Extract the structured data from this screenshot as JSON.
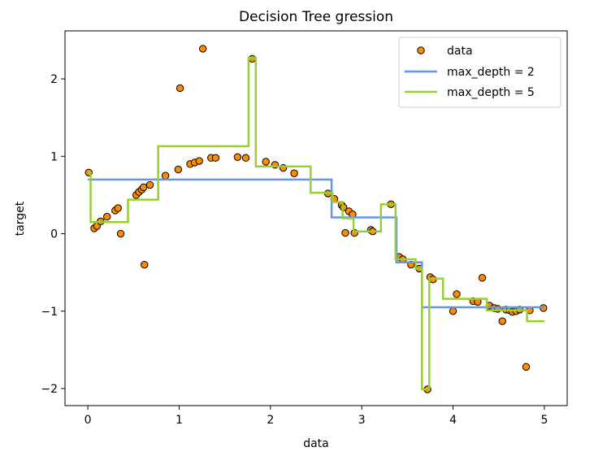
{
  "chart_data": {
    "type": "scatter+step",
    "title": "Decision Tree gression",
    "xlabel": "data",
    "ylabel": "target",
    "xlim": [
      -0.25,
      5.25
    ],
    "ylim": [
      -2.22,
      2.62
    ],
    "x_ticks": [
      0,
      1,
      2,
      3,
      4,
      5
    ],
    "x_tick_labels": [
      "0",
      "1",
      "2",
      "3",
      "4",
      "5"
    ],
    "y_ticks": [
      2,
      1,
      0,
      -1,
      -2
    ],
    "y_tick_labels": [
      "2",
      "1",
      "0",
      "−1",
      "−2"
    ],
    "legend": [
      {
        "label": "data",
        "kind": "marker",
        "color": "#ff8c00"
      },
      {
        "label": "max_depth = 2",
        "kind": "line",
        "color": "#6495ed"
      },
      {
        "label": "max_depth = 5",
        "kind": "line",
        "color": "#9acd32"
      }
    ],
    "legend_position": "top-right",
    "scatter": {
      "name": "data",
      "color": "#ff8c00",
      "edgecolor": "#000000",
      "points": [
        [
          0.01,
          0.79
        ],
        [
          0.07,
          0.07
        ],
        [
          0.1,
          0.1
        ],
        [
          0.14,
          0.16
        ],
        [
          0.21,
          0.22
        ],
        [
          0.3,
          0.3
        ],
        [
          0.33,
          0.33
        ],
        [
          0.36,
          0.0
        ],
        [
          0.53,
          0.5
        ],
        [
          0.56,
          0.54
        ],
        [
          0.59,
          0.57
        ],
        [
          0.61,
          0.6
        ],
        [
          0.62,
          -0.4
        ],
        [
          0.68,
          0.63
        ],
        [
          0.85,
          0.75
        ],
        [
          0.99,
          0.83
        ],
        [
          1.01,
          1.88
        ],
        [
          1.12,
          0.9
        ],
        [
          1.17,
          0.92
        ],
        [
          1.22,
          0.94
        ],
        [
          1.26,
          2.39
        ],
        [
          1.35,
          0.98
        ],
        [
          1.4,
          0.98
        ],
        [
          1.64,
          0.99
        ],
        [
          1.73,
          0.98
        ],
        [
          1.8,
          2.26
        ],
        [
          1.95,
          0.93
        ],
        [
          2.05,
          0.89
        ],
        [
          2.14,
          0.85
        ],
        [
          2.26,
          0.78
        ],
        [
          2.63,
          0.52
        ],
        [
          2.7,
          0.45
        ],
        [
          2.78,
          0.37
        ],
        [
          2.8,
          0.34
        ],
        [
          2.82,
          0.01
        ],
        [
          2.86,
          0.29
        ],
        [
          2.9,
          0.25
        ],
        [
          2.92,
          0.01
        ],
        [
          3.1,
          0.05
        ],
        [
          3.12,
          0.03
        ],
        [
          3.32,
          0.38
        ],
        [
          3.41,
          -0.3
        ],
        [
          3.45,
          -0.33
        ],
        [
          3.54,
          -0.4
        ],
        [
          3.63,
          -0.45
        ],
        [
          3.72,
          -2.01
        ],
        [
          3.75,
          -0.56
        ],
        [
          3.78,
          -0.59
        ],
        [
          4.0,
          -1.0
        ],
        [
          4.04,
          -0.78
        ],
        [
          4.22,
          -0.87
        ],
        [
          4.27,
          -0.88
        ],
        [
          4.32,
          -0.57
        ],
        [
          4.4,
          -0.93
        ],
        [
          4.45,
          -0.96
        ],
        [
          4.49,
          -0.97
        ],
        [
          4.54,
          -1.13
        ],
        [
          4.58,
          -0.98
        ],
        [
          4.62,
          -0.99
        ],
        [
          4.65,
          -1.01
        ],
        [
          4.69,
          -1.0
        ],
        [
          4.73,
          -0.98
        ],
        [
          4.8,
          -1.72
        ],
        [
          4.84,
          -0.99
        ],
        [
          4.99,
          -0.96
        ]
      ]
    },
    "series": [
      {
        "name": "max_depth = 2",
        "type": "line",
        "color": "#6495ed",
        "points": [
          [
            0.0,
            0.7
          ],
          [
            2.67,
            0.7
          ],
          [
            2.67,
            0.21
          ],
          [
            3.38,
            0.21
          ],
          [
            3.38,
            -0.37
          ],
          [
            3.66,
            -0.37
          ],
          [
            3.66,
            -0.95
          ],
          [
            5.0,
            -0.95
          ]
        ]
      },
      {
        "name": "max_depth = 5",
        "type": "line",
        "color": "#9acd32",
        "points": [
          [
            0.0,
            0.79
          ],
          [
            0.03,
            0.79
          ],
          [
            0.03,
            0.15
          ],
          [
            0.44,
            0.15
          ],
          [
            0.44,
            0.44
          ],
          [
            0.77,
            0.44
          ],
          [
            0.77,
            1.13
          ],
          [
            1.76,
            1.13
          ],
          [
            1.76,
            2.27
          ],
          [
            1.84,
            2.27
          ],
          [
            1.84,
            0.87
          ],
          [
            2.44,
            0.87
          ],
          [
            2.44,
            0.53
          ],
          [
            2.68,
            0.53
          ],
          [
            2.68,
            0.41
          ],
          [
            2.79,
            0.41
          ],
          [
            2.79,
            0.2
          ],
          [
            2.91,
            0.2
          ],
          [
            2.91,
            0.03
          ],
          [
            3.21,
            0.03
          ],
          [
            3.21,
            0.38
          ],
          [
            3.37,
            0.38
          ],
          [
            3.37,
            -0.33
          ],
          [
            3.59,
            -0.33
          ],
          [
            3.59,
            -0.45
          ],
          [
            3.66,
            -0.45
          ],
          [
            3.66,
            -2.01
          ],
          [
            3.74,
            -2.01
          ],
          [
            3.74,
            -0.58
          ],
          [
            3.89,
            -0.58
          ],
          [
            3.89,
            -0.84
          ],
          [
            4.37,
            -0.84
          ],
          [
            4.37,
            -0.99
          ],
          [
            4.81,
            -0.99
          ],
          [
            4.81,
            -1.13
          ],
          [
            5.0,
            -1.13
          ]
        ]
      }
    ]
  }
}
